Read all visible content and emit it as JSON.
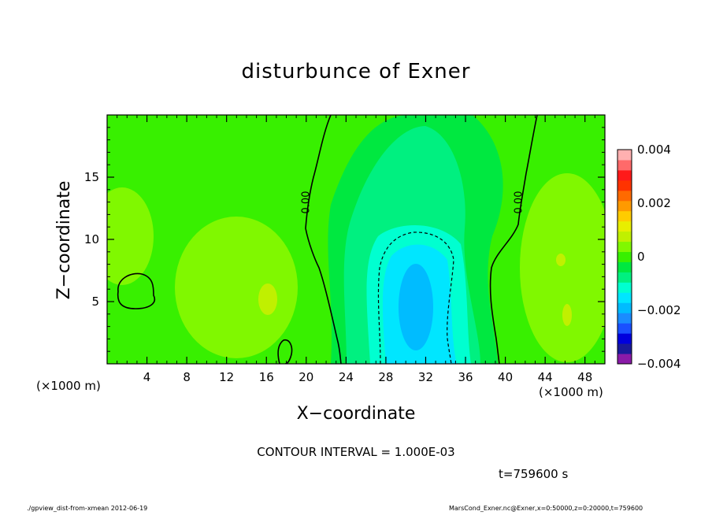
{
  "chart_data": {
    "type": "heatmap",
    "title": "disturbunce of Exner",
    "xlabel": "X−coordinate",
    "ylabel": "Z−coordinate",
    "x_unit_label": "(×1000 m)",
    "y_unit_label": "(×1000 m)",
    "xlim": [
      0,
      50
    ],
    "ylim": [
      0,
      20
    ],
    "x_ticks": [
      4,
      8,
      12,
      16,
      20,
      24,
      28,
      32,
      36,
      40,
      44,
      48
    ],
    "y_ticks": [
      5,
      10,
      15
    ],
    "colorbar": {
      "range": [
        -0.004,
        0.004
      ],
      "tick_values": [
        0.004,
        0.002,
        0,
        -0.002,
        -0.004
      ],
      "tick_labels": [
        "0.004",
        "0.002",
        "0",
        "−0.002",
        "−0.004"
      ],
      "colors": [
        "#8a1aa8",
        "#1a1a9a",
        "#0000dd",
        "#1a50ff",
        "#1a8cff",
        "#00bcff",
        "#00e6ff",
        "#00ffd0",
        "#00f080",
        "#00e840",
        "#38f000",
        "#80f800",
        "#c0f000",
        "#e8ee00",
        "#ffcc00",
        "#ff9a00",
        "#ff6a00",
        "#ff3300",
        "#ff1a1a",
        "#ff6a6a",
        "#ffb0b0"
      ]
    },
    "contour_labels": [
      "0.00",
      "0.00"
    ],
    "contour_interval": "CONTOUR INTERVAL = 1.000E-03",
    "time": "t=759600 s",
    "footer_left": "./gpview_dist-from-xmean  2012-06-19",
    "footer_right": "MarsCond_Exner.nc@Exner,x=0:50000,z=0:20000,t=759600"
  }
}
